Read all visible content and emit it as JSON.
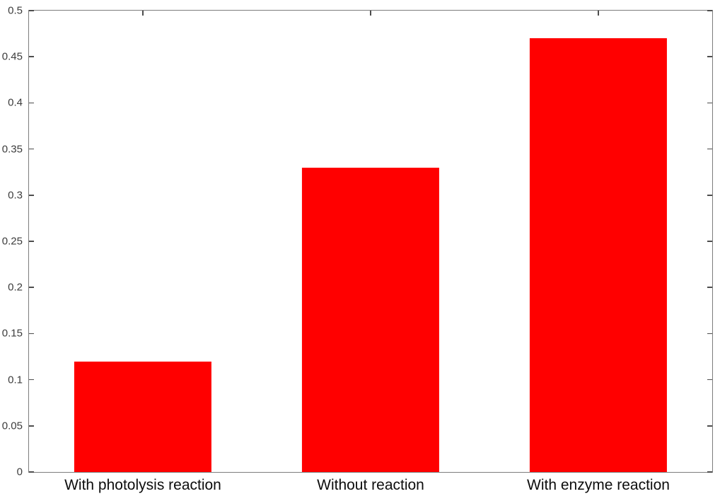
{
  "chart_data": {
    "type": "bar",
    "title": "",
    "xlabel": "",
    "ylabel": "",
    "categories": [
      "With photolysis reaction",
      "Without reaction",
      "With enzyme reaction"
    ],
    "values": [
      0.12,
      0.33,
      0.47
    ],
    "ylim": [
      0,
      0.5
    ],
    "ytick_interval": 0.05,
    "ytick_labels": [
      "0",
      "0.05",
      "0.1",
      "0.15",
      "0.2",
      "0.25",
      "0.3",
      "0.35",
      "0.4",
      "0.45",
      "0.5"
    ],
    "bar_color": "#ff0000",
    "bar_width_fraction": 0.201,
    "axis_box_color": "#7d7d7d",
    "tick_color": "#4d4d4d",
    "grid": false,
    "legend": null
  }
}
